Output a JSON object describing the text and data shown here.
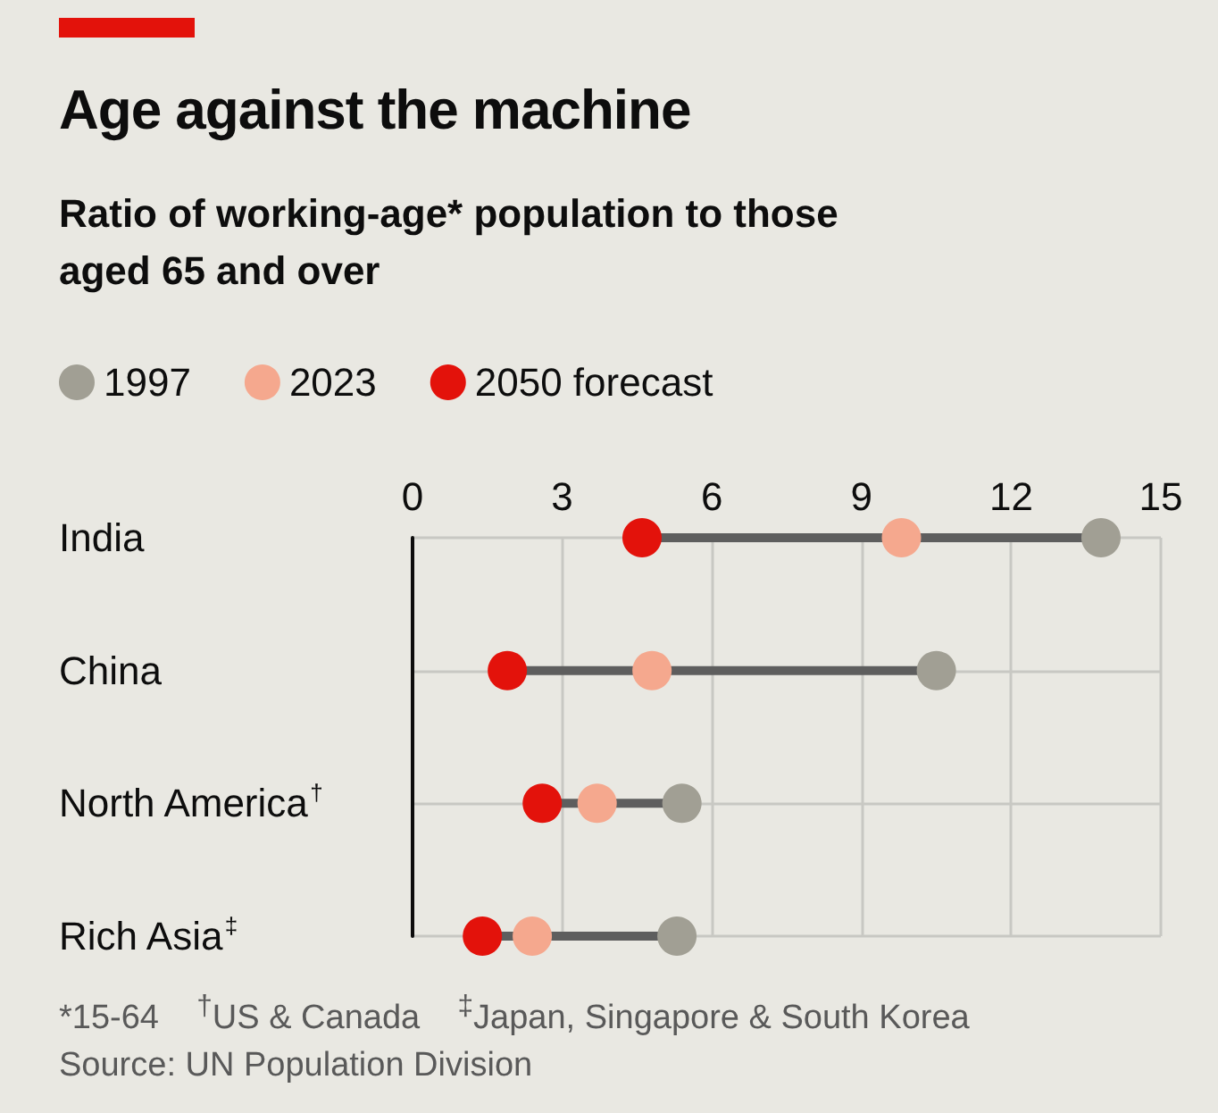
{
  "chart_data": {
    "type": "scatter",
    "orientation": "horizontal",
    "title": "Age against the machine",
    "subtitle": "Ratio of working-age* population to those aged 65 and over",
    "categories": [
      "India",
      "China",
      "North America$^{†}$",
      "Rich Asia$^{‡}$"
    ],
    "series": [
      {
        "name": "1997",
        "color": "#a19f94",
        "values": [
          13.8,
          10.5,
          5.4,
          5.3
        ]
      },
      {
        "name": "2023",
        "color": "#f5a88e",
        "values": [
          9.8,
          4.8,
          3.7,
          2.4
        ]
      },
      {
        "name": "2050 forecast",
        "color": "#e3120b",
        "values": [
          4.6,
          1.9,
          2.6,
          1.4
        ]
      }
    ],
    "xlim": [
      0,
      15
    ],
    "xticks": [
      0,
      3,
      6,
      9,
      12,
      15
    ],
    "grid": true,
    "legend": "top left",
    "marker": "circle",
    "annotations": [
      "*15-64    $^{†}$US & Canada    $^{‡}$Japan, Singapore & South Korea",
      "Source: UN Population Division"
    ]
  }
}
